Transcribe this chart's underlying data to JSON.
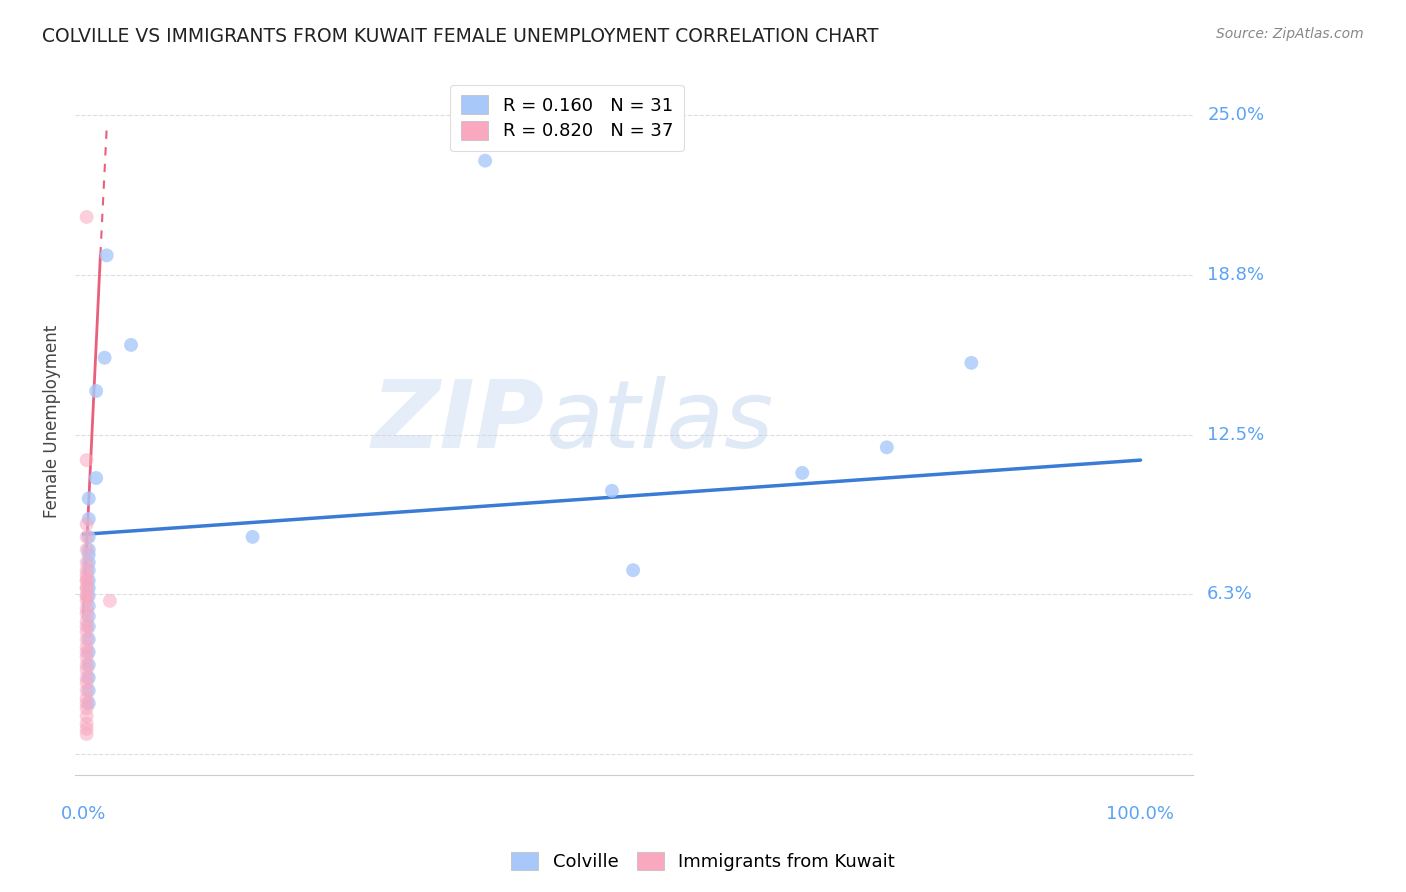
{
  "title": "COLVILLE VS IMMIGRANTS FROM KUWAIT FEMALE UNEMPLOYMENT CORRELATION CHART",
  "source": "Source: ZipAtlas.com",
  "ylabel": "Female Unemployment",
  "yticks": [
    0.0,
    0.0625,
    0.125,
    0.1875,
    0.25
  ],
  "ytick_labels": [
    "",
    "6.3%",
    "12.5%",
    "18.8%",
    "25.0%"
  ],
  "xlim": [
    -0.008,
    1.05
  ],
  "ylim": [
    -0.008,
    0.268
  ],
  "watermark_zip": "ZIP",
  "watermark_atlas": "atlas",
  "legend_entries": [
    {
      "label": "R = 0.160   N = 31",
      "color": "#a8c8fa"
    },
    {
      "label": "R = 0.820   N = 37",
      "color": "#f9a8c0"
    }
  ],
  "colville_x": [
    0.38,
    0.022,
    0.045,
    0.02,
    0.012,
    0.012,
    0.005,
    0.005,
    0.005,
    0.005,
    0.005,
    0.005,
    0.005,
    0.005,
    0.005,
    0.005,
    0.005,
    0.005,
    0.005,
    0.005,
    0.005,
    0.005,
    0.005,
    0.005,
    0.005,
    0.16,
    0.5,
    0.68,
    0.52,
    0.84,
    0.76
  ],
  "colville_y": [
    0.232,
    0.195,
    0.16,
    0.155,
    0.142,
    0.108,
    0.1,
    0.092,
    0.085,
    0.08,
    0.078,
    0.075,
    0.072,
    0.068,
    0.065,
    0.062,
    0.058,
    0.054,
    0.05,
    0.045,
    0.04,
    0.035,
    0.03,
    0.025,
    0.02,
    0.085,
    0.103,
    0.11,
    0.072,
    0.153,
    0.12
  ],
  "kuwait_x": [
    0.003,
    0.003,
    0.003,
    0.003,
    0.003,
    0.003,
    0.003,
    0.003,
    0.003,
    0.003,
    0.003,
    0.003,
    0.003,
    0.003,
    0.003,
    0.003,
    0.003,
    0.003,
    0.003,
    0.003,
    0.003,
    0.003,
    0.003,
    0.003,
    0.003,
    0.003,
    0.003,
    0.003,
    0.003,
    0.003,
    0.003,
    0.003,
    0.003,
    0.003,
    0.003,
    0.003,
    0.025
  ],
  "kuwait_y": [
    0.21,
    0.115,
    0.09,
    0.085,
    0.08,
    0.075,
    0.072,
    0.068,
    0.065,
    0.062,
    0.06,
    0.057,
    0.055,
    0.052,
    0.05,
    0.048,
    0.045,
    0.042,
    0.04,
    0.038,
    0.035,
    0.033,
    0.03,
    0.028,
    0.025,
    0.022,
    0.02,
    0.018,
    0.015,
    0.012,
    0.01,
    0.008,
    0.07,
    0.068,
    0.065,
    0.062,
    0.06
  ],
  "colville_color": "#a8c8fa",
  "kuwait_color": "#f9a8c0",
  "trend_blue": [
    0.0,
    0.086,
    1.0,
    0.115
  ],
  "trend_pink_solid": [
    0.0,
    0.055,
    0.016,
    0.195
  ],
  "trend_pink_dashed": [
    0.016,
    0.195,
    0.022,
    0.245
  ],
  "background_color": "#ffffff",
  "grid_color": "#dddddd",
  "title_color": "#222222",
  "axis_label_color": "#5ba3f5",
  "marker_size": 100
}
